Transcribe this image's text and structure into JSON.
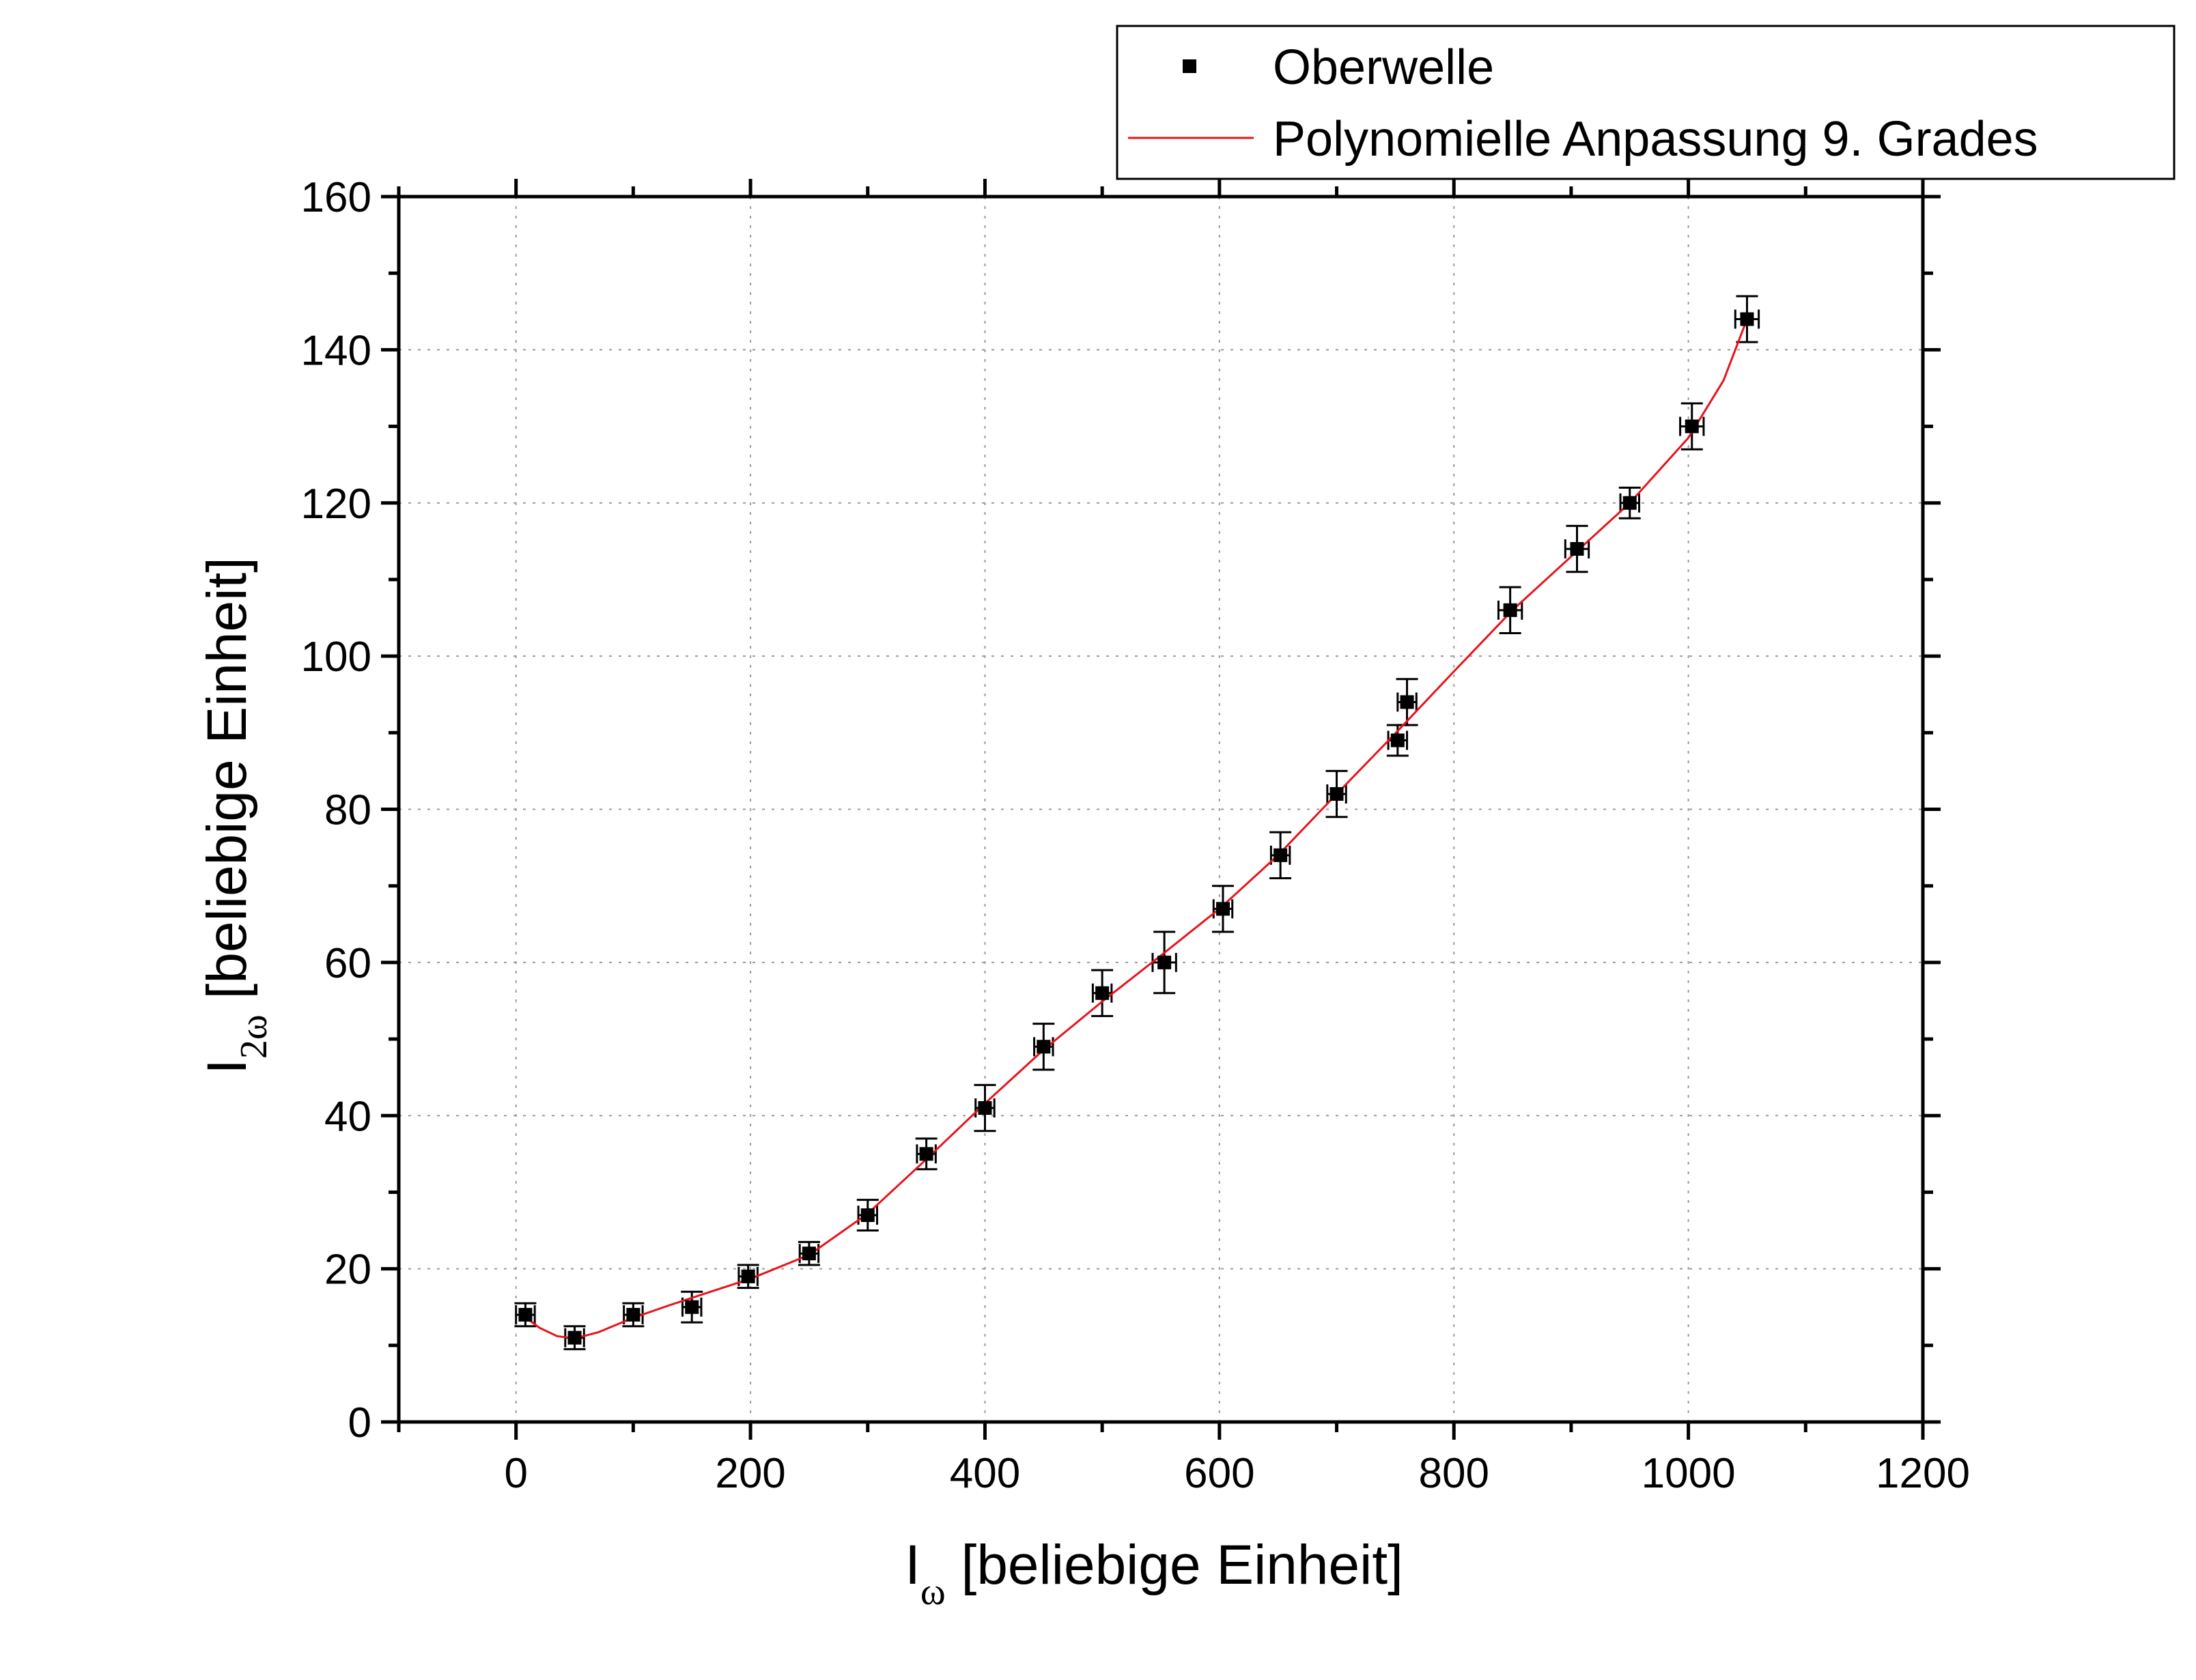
{
  "chart_data": {
    "type": "scatter",
    "title": "",
    "xlabel": {
      "main": "I",
      "sub": "ω",
      "rest": " [beliebige Einheit]"
    },
    "ylabel": {
      "main": "I",
      "sub": "2ω",
      "rest": " [beliebige Einheit]"
    },
    "xlim": [
      -100,
      1200
    ],
    "ylim": [
      0,
      160
    ],
    "x_ticks": [
      0,
      200,
      400,
      600,
      800,
      1000,
      1200
    ],
    "x_tick_labels": [
      "0",
      "200",
      "400",
      "600",
      "800",
      "1000",
      "1200"
    ],
    "y_ticks": [
      0,
      20,
      40,
      60,
      80,
      100,
      120,
      140,
      160
    ],
    "y_tick_labels": [
      "0",
      "20",
      "40",
      "60",
      "80",
      "100",
      "120",
      "140",
      "160"
    ],
    "grid": true,
    "legend_position": "top-right, outside plot",
    "series": [
      {
        "name": "Oberwelle",
        "kind": "points-with-errorbars",
        "color": "#000000",
        "points": [
          {
            "x": 8,
            "y": 14,
            "xerr": 8,
            "yerr": 1.5
          },
          {
            "x": 50,
            "y": 11,
            "xerr": 8,
            "yerr": 1.5
          },
          {
            "x": 100,
            "y": 14,
            "xerr": 8,
            "yerr": 1.5
          },
          {
            "x": 150,
            "y": 15,
            "xerr": 8,
            "yerr": 2
          },
          {
            "x": 198,
            "y": 19,
            "xerr": 8,
            "yerr": 1.5
          },
          {
            "x": 250,
            "y": 22,
            "xerr": 8,
            "yerr": 1.5
          },
          {
            "x": 300,
            "y": 27,
            "xerr": 8,
            "yerr": 2
          },
          {
            "x": 350,
            "y": 35,
            "xerr": 8,
            "yerr": 2
          },
          {
            "x": 400,
            "y": 41,
            "xerr": 8,
            "yerr": 3
          },
          {
            "x": 450,
            "y": 49,
            "xerr": 8,
            "yerr": 3
          },
          {
            "x": 500,
            "y": 56,
            "xerr": 8,
            "yerr": 3
          },
          {
            "x": 553,
            "y": 60,
            "xerr": 10,
            "yerr": 4
          },
          {
            "x": 603,
            "y": 67,
            "xerr": 8,
            "yerr": 3
          },
          {
            "x": 652,
            "y": 74,
            "xerr": 8,
            "yerr": 3
          },
          {
            "x": 700,
            "y": 82,
            "xerr": 8,
            "yerr": 3
          },
          {
            "x": 752,
            "y": 89,
            "xerr": 8,
            "yerr": 2
          },
          {
            "x": 760,
            "y": 94,
            "xerr": 8,
            "yerr": 3
          },
          {
            "x": 848,
            "y": 106,
            "xerr": 10,
            "yerr": 3
          },
          {
            "x": 905,
            "y": 114,
            "xerr": 10,
            "yerr": 3
          },
          {
            "x": 950,
            "y": 120,
            "xerr": 8,
            "yerr": 2
          },
          {
            "x": 1003,
            "y": 130,
            "xerr": 10,
            "yerr": 3
          },
          {
            "x": 1050,
            "y": 144,
            "xerr": 10,
            "yerr": 3
          }
        ]
      },
      {
        "name": "Polynomielle Anpassung 9. Grades",
        "kind": "line",
        "color": "#e8131b",
        "points": [
          {
            "x": 5,
            "y": 14
          },
          {
            "x": 20,
            "y": 12.3
          },
          {
            "x": 35,
            "y": 11.2
          },
          {
            "x": 50,
            "y": 10.9
          },
          {
            "x": 70,
            "y": 11.7
          },
          {
            "x": 100,
            "y": 13.6
          },
          {
            "x": 130,
            "y": 15.2
          },
          {
            "x": 160,
            "y": 16.7
          },
          {
            "x": 200,
            "y": 18.7
          },
          {
            "x": 250,
            "y": 21.8
          },
          {
            "x": 300,
            "y": 27.2
          },
          {
            "x": 350,
            "y": 34.3
          },
          {
            "x": 400,
            "y": 41.6
          },
          {
            "x": 450,
            "y": 48.6
          },
          {
            "x": 500,
            "y": 54.9
          },
          {
            "x": 550,
            "y": 60.9
          },
          {
            "x": 600,
            "y": 67
          },
          {
            "x": 650,
            "y": 74
          },
          {
            "x": 700,
            "y": 82
          },
          {
            "x": 750,
            "y": 89.9
          },
          {
            "x": 800,
            "y": 98
          },
          {
            "x": 850,
            "y": 106
          },
          {
            "x": 900,
            "y": 113
          },
          {
            "x": 950,
            "y": 120
          },
          {
            "x": 1000,
            "y": 128.5
          },
          {
            "x": 1030,
            "y": 136
          },
          {
            "x": 1050,
            "y": 144
          }
        ]
      }
    ]
  }
}
